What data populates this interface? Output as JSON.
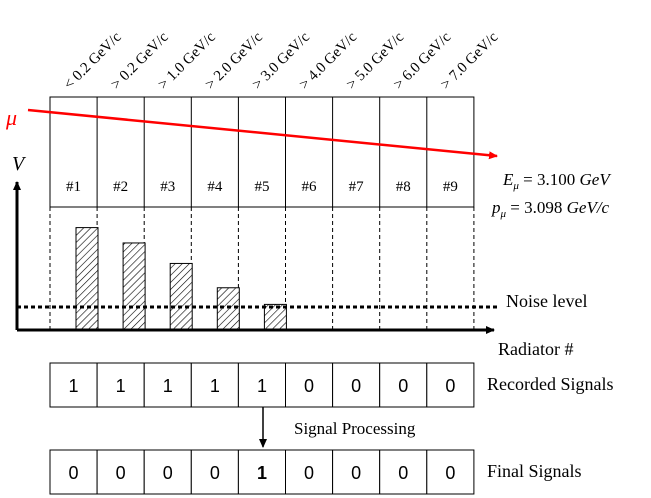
{
  "colors": {
    "muon": "#ff0000",
    "line": "#000000",
    "background": "#ffffff"
  },
  "thresholds": [
    "< 0.2 GeV/c",
    "> 0.2 GeV/c",
    "> 1.0 GeV/c",
    "> 2.0 GeV/c",
    "> 3.0 GeV/c",
    "> 4.0 GeV/c",
    "> 5.0 GeV/c",
    "> 6.0 GeV/c",
    "> 7.0 GeV/c"
  ],
  "radiators": [
    "#1",
    "#2",
    "#3",
    "#4",
    "#5",
    "#6",
    "#7",
    "#8",
    "#9"
  ],
  "muon_label": "μ",
  "axis": {
    "y_label": "V",
    "x_label": "Radiator #"
  },
  "particle": {
    "energy": {
      "symbol": "E",
      "sub": "μ",
      "value": " = 3.100 ",
      "unit": "GeV"
    },
    "momentum": {
      "symbol": "p",
      "sub": "μ",
      "value": " = 3.098 ",
      "unit": "GeV/c"
    }
  },
  "noise_label": "Noise level",
  "signal_levels": [
    0.8,
    0.68,
    0.52,
    0.33,
    0.2
  ],
  "noise_level": 0.18,
  "recorded": {
    "label": "Recorded Signals",
    "values": [
      "1",
      "1",
      "1",
      "1",
      "1",
      "0",
      "0",
      "0",
      "0"
    ]
  },
  "processing_label": "Signal Processing",
  "final": {
    "label": "Final Signals",
    "values": [
      "0",
      "0",
      "0",
      "0",
      "1",
      "0",
      "0",
      "0",
      "0"
    ],
    "highlight_index": 4
  }
}
